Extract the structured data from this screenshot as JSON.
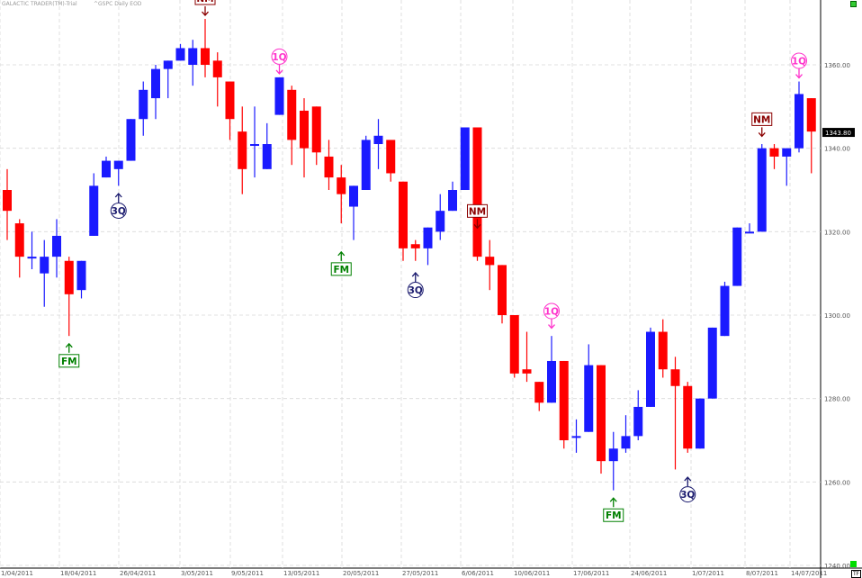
{
  "header": {
    "app_name": "GALACTIC TRADER(TM)-Trial",
    "symbol_info": "^GSPC Daily EOD"
  },
  "tf_label": "TF",
  "colors": {
    "up": "#1a1aff",
    "down": "#ff0000",
    "wick_up": "#1a1aff",
    "wick_down": "#ff0000",
    "grid": "#d8d8d8",
    "axis_text": "#555555",
    "price_tag_bg": "#000000",
    "price_tag_text": "#ffffff",
    "nm": "#8b0000",
    "q_pink": "#ff33cc",
    "q_navy": "#1a1a6e",
    "fm": "#008000",
    "corner_green": "#00dd00"
  },
  "chart_data": {
    "type": "candlestick",
    "ylim": [
      1240,
      1380
    ],
    "y_ticks": [
      "1240.00",
      "1260.00",
      "1280.00",
      "1300.00",
      "1320.00",
      "1340.00",
      "1360.00"
    ],
    "x_ticks": [
      "1/04/2011",
      "18/04/2011",
      "26/04/2011",
      "3/05/2011",
      "9/05/2011",
      "13/05/2011",
      "20/05/2011",
      "27/05/2011",
      "6/06/2011",
      "10/06/2011",
      "17/06/2011",
      "24/06/2011",
      "1/07/2011",
      "8/07/2011",
      "14/07/2011"
    ],
    "last_price": "1343.80",
    "candles": [
      {
        "o": 1330,
        "h": 1335,
        "l": 1318,
        "c": 1325
      },
      {
        "o": 1322,
        "h": 1323,
        "l": 1309,
        "c": 1314
      },
      {
        "o": 1314,
        "h": 1320,
        "l": 1311,
        "c": 1314
      },
      {
        "o": 1310,
        "h": 1318,
        "l": 1302,
        "c": 1314
      },
      {
        "o": 1314,
        "h": 1323,
        "l": 1309,
        "c": 1319
      },
      {
        "o": 1313,
        "h": 1314,
        "l": 1295,
        "c": 1305
      },
      {
        "o": 1306,
        "h": 1313,
        "l": 1304,
        "c": 1313
      },
      {
        "o": 1319,
        "h": 1334,
        "l": 1319,
        "c": 1331
      },
      {
        "o": 1333,
        "h": 1338,
        "l": 1333,
        "c": 1337
      },
      {
        "o": 1335,
        "h": 1337,
        "l": 1331,
        "c": 1337
      },
      {
        "o": 1337,
        "h": 1347,
        "l": 1337,
        "c": 1347
      },
      {
        "o": 1347,
        "h": 1356,
        "l": 1343,
        "c": 1354
      },
      {
        "o": 1352,
        "h": 1360,
        "l": 1347,
        "c": 1359
      },
      {
        "o": 1359,
        "h": 1361,
        "l": 1352,
        "c": 1361
      },
      {
        "o": 1361,
        "h": 1365,
        "l": 1361,
        "c": 1364
      },
      {
        "o": 1360,
        "h": 1366,
        "l": 1355,
        "c": 1364
      },
      {
        "o": 1364,
        "h": 1371,
        "l": 1357,
        "c": 1360
      },
      {
        "o": 1361,
        "h": 1363,
        "l": 1350,
        "c": 1357
      },
      {
        "o": 1356,
        "h": 1356,
        "l": 1342,
        "c": 1347
      },
      {
        "o": 1344,
        "h": 1350,
        "l": 1329,
        "c": 1335
      },
      {
        "o": 1341,
        "h": 1350,
        "l": 1333,
        "c": 1341
      },
      {
        "o": 1335,
        "h": 1346,
        "l": 1335,
        "c": 1341
      },
      {
        "o": 1348,
        "h": 1357,
        "l": 1348,
        "c": 1357
      },
      {
        "o": 1354,
        "h": 1355,
        "l": 1336,
        "c": 1342
      },
      {
        "o": 1349,
        "h": 1352,
        "l": 1333,
        "c": 1340
      },
      {
        "o": 1350,
        "h": 1350,
        "l": 1336,
        "c": 1339
      },
      {
        "o": 1338,
        "h": 1342,
        "l": 1330,
        "c": 1333
      },
      {
        "o": 1333,
        "h": 1336,
        "l": 1322,
        "c": 1329
      },
      {
        "o": 1326,
        "h": 1331,
        "l": 1318,
        "c": 1331
      },
      {
        "o": 1330,
        "h": 1343,
        "l": 1330,
        "c": 1342
      },
      {
        "o": 1341,
        "h": 1347,
        "l": 1335,
        "c": 1343
      },
      {
        "o": 1342,
        "h": 1341,
        "l": 1332,
        "c": 1334
      },
      {
        "o": 1332,
        "h": 1332,
        "l": 1313,
        "c": 1316
      },
      {
        "o": 1317,
        "h": 1318,
        "l": 1313,
        "c": 1316
      },
      {
        "o": 1316,
        "h": 1321,
        "l": 1312,
        "c": 1321
      },
      {
        "o": 1320,
        "h": 1329,
        "l": 1318,
        "c": 1325
      },
      {
        "o": 1325,
        "h": 1332,
        "l": 1325,
        "c": 1330
      },
      {
        "o": 1330,
        "h": 1345,
        "l": 1330,
        "c": 1345
      },
      {
        "o": 1345,
        "h": 1345,
        "l": 1313,
        "c": 1314
      },
      {
        "o": 1314,
        "h": 1318,
        "l": 1306,
        "c": 1312
      },
      {
        "o": 1312,
        "h": 1312,
        "l": 1298,
        "c": 1300
      },
      {
        "o": 1300,
        "h": 1300,
        "l": 1285,
        "c": 1286
      },
      {
        "o": 1287,
        "h": 1296,
        "l": 1284,
        "c": 1286
      },
      {
        "o": 1284,
        "h": 1284,
        "l": 1277,
        "c": 1279
      },
      {
        "o": 1279,
        "h": 1295,
        "l": 1279,
        "c": 1289
      },
      {
        "o": 1289,
        "h": 1289,
        "l": 1268,
        "c": 1270
      },
      {
        "o": 1271,
        "h": 1275,
        "l": 1267,
        "c": 1271
      },
      {
        "o": 1272,
        "h": 1293,
        "l": 1272,
        "c": 1288
      },
      {
        "o": 1288,
        "h": 1288,
        "l": 1262,
        "c": 1265
      },
      {
        "o": 1265,
        "h": 1272,
        "l": 1258,
        "c": 1268
      },
      {
        "o": 1268,
        "h": 1276,
        "l": 1267,
        "c": 1271
      },
      {
        "o": 1271,
        "h": 1282,
        "l": 1270,
        "c": 1278
      },
      {
        "o": 1278,
        "h": 1297,
        "l": 1278,
        "c": 1296
      },
      {
        "o": 1296,
        "h": 1299,
        "l": 1285,
        "c": 1287
      },
      {
        "o": 1287,
        "h": 1290,
        "l": 1263,
        "c": 1283
      },
      {
        "o": 1283,
        "h": 1284,
        "l": 1267,
        "c": 1268
      },
      {
        "o": 1268,
        "h": 1280,
        "l": 1268,
        "c": 1280
      },
      {
        "o": 1280,
        "h": 1297,
        "l": 1280,
        "c": 1297
      },
      {
        "o": 1295,
        "h": 1308,
        "l": 1295,
        "c": 1307
      },
      {
        "o": 1307,
        "h": 1321,
        "l": 1307,
        "c": 1321
      },
      {
        "o": 1320,
        "h": 1322,
        "l": 1320,
        "c": 1320
      },
      {
        "o": 1320,
        "h": 1341,
        "l": 1320,
        "c": 1340
      },
      {
        "o": 1340,
        "h": 1341,
        "l": 1335,
        "c": 1338
      },
      {
        "o": 1338,
        "h": 1340,
        "l": 1331,
        "c": 1340
      },
      {
        "o": 1340,
        "h": 1356,
        "l": 1339,
        "c": 1353
      },
      {
        "o": 1352,
        "h": 1352,
        "l": 1334,
        "c": 1344
      }
    ],
    "annotations": [
      {
        "label": "NM",
        "bar": 16,
        "price": 1371,
        "dir": "down",
        "style": "nm"
      },
      {
        "label": "1Q",
        "bar": 22,
        "price": 1357,
        "dir": "down",
        "style": "q_pink"
      },
      {
        "label": "NM",
        "bar": 38,
        "price": 1320,
        "dir": "down",
        "style": "nm"
      },
      {
        "label": "1Q",
        "bar": 44,
        "price": 1296,
        "dir": "down",
        "style": "q_pink"
      },
      {
        "label": "NM",
        "bar": 61,
        "price": 1342,
        "dir": "down",
        "style": "nm"
      },
      {
        "label": "1Q",
        "bar": 64,
        "price": 1356,
        "dir": "down",
        "style": "q_pink"
      },
      {
        "label": "FM",
        "bar": 5,
        "price": 1294,
        "dir": "up",
        "style": "fm"
      },
      {
        "label": "3Q",
        "bar": 9,
        "price": 1330,
        "dir": "up",
        "style": "q_navy"
      },
      {
        "label": "FM",
        "bar": 27,
        "price": 1316,
        "dir": "up",
        "style": "fm"
      },
      {
        "label": "3Q",
        "bar": 33,
        "price": 1311,
        "dir": "up",
        "style": "q_navy"
      },
      {
        "label": "FM",
        "bar": 49,
        "price": 1257,
        "dir": "up",
        "style": "fm"
      },
      {
        "label": "3Q",
        "bar": 55,
        "price": 1262,
        "dir": "up",
        "style": "q_navy"
      }
    ]
  }
}
